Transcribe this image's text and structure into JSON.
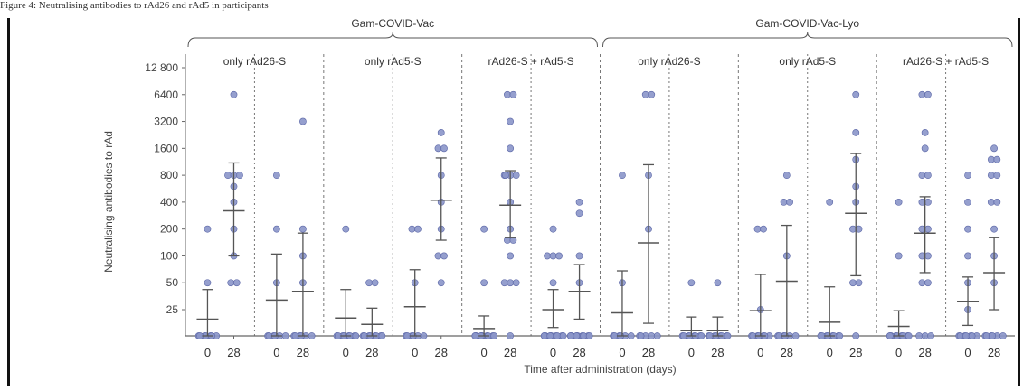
{
  "page": {
    "caption_top": "Figure 4: Neutralising antibodies to rAd26 and rAd5 in participants",
    "caption_bottom": ""
  },
  "colors": {
    "point_fill": "#8a95c9",
    "point_stroke": "#5b66a6",
    "whisker": "#555555",
    "divider": "#777777",
    "axis": "#666666"
  },
  "chart_data": {
    "type": "scatter",
    "ylabel": "Neutralising antibodies to rAd",
    "xlabel": "Time after administration (days)",
    "y_scale": "log2",
    "yticks": [
      25,
      50,
      100,
      200,
      400,
      800,
      1600,
      3200,
      6400,
      12800
    ],
    "ytick_labels": [
      "25",
      "50",
      "100",
      "200",
      "400",
      "800",
      "1600",
      "3200",
      "6400",
      "12 800"
    ],
    "y_floor_label": "",
    "groups": [
      {
        "name": "Gam-COVID-Vac",
        "subgroups": [
          0,
          1,
          2
        ]
      },
      {
        "name": "Gam-COVID-Vac-Lyo",
        "subgroups": [
          3,
          4,
          5
        ]
      }
    ],
    "subgroups": [
      {
        "label": "only rAd26-S",
        "panels": [
          0,
          1
        ]
      },
      {
        "label": "only rAd5-S",
        "panels": [
          2,
          3
        ]
      },
      {
        "label": "rAd26-S + rAd5-S",
        "panels": [
          4,
          5
        ]
      },
      {
        "label": "only rAd26-S",
        "panels": [
          6,
          7
        ]
      },
      {
        "label": "only rAd5-S",
        "panels": [
          8,
          9
        ]
      },
      {
        "label": "rAd26-S + rAd5-S",
        "panels": [
          10,
          11
        ]
      }
    ],
    "x_tick_labels": [
      "0",
      "28"
    ],
    "panels": [
      {
        "d0": {
          "values": [
            0,
            0,
            0,
            0,
            0,
            0,
            0,
            50,
            200
          ],
          "mean": 16,
          "ci": [
            0,
            42
          ]
        },
        "d28": {
          "values": [
            50,
            50,
            100,
            200,
            400,
            600,
            800,
            800,
            800,
            6400
          ],
          "mean": 320,
          "ci": [
            100,
            1100
          ]
        }
      },
      {
        "d0": {
          "values": [
            0,
            0,
            0,
            0,
            0,
            0,
            50,
            200,
            800
          ],
          "mean": 32,
          "ci": [
            0,
            105
          ]
        },
        "d28": {
          "values": [
            0,
            0,
            0,
            0,
            0,
            0,
            50,
            100,
            200,
            3200
          ],
          "mean": 40,
          "ci": [
            0,
            180
          ]
        }
      },
      {
        "d0": {
          "values": [
            0,
            0,
            0,
            0,
            0,
            0,
            0,
            0,
            200
          ],
          "mean": 17,
          "ci": [
            0,
            42
          ]
        },
        "d28": {
          "values": [
            0,
            0,
            0,
            0,
            0,
            0,
            0,
            0,
            50,
            50
          ],
          "mean": 11,
          "ci": [
            0,
            26
          ]
        }
      },
      {
        "d0": {
          "values": [
            0,
            0,
            0,
            0,
            0,
            0,
            50,
            200,
            200
          ],
          "mean": 27,
          "ci": [
            0,
            70
          ]
        },
        "d28": {
          "values": [
            50,
            100,
            100,
            200,
            400,
            800,
            1600,
            1600,
            2400
          ],
          "mean": 420,
          "ci": [
            150,
            1250
          ]
        }
      },
      {
        "d0": {
          "values": [
            0,
            0,
            0,
            0,
            0,
            0,
            0,
            0,
            0,
            0,
            50,
            200
          ],
          "mean": 7,
          "ci": [
            0,
            19
          ]
        },
        "d28": {
          "values": [
            0,
            50,
            50,
            50,
            100,
            150,
            150,
            200,
            400,
            800,
            800,
            800,
            800,
            1600,
            3200,
            6400,
            6400
          ],
          "mean": 370,
          "ci": [
            160,
            900
          ]
        }
      },
      {
        "d0": {
          "values": [
            0,
            0,
            0,
            0,
            0,
            0,
            0,
            0,
            0,
            0,
            50,
            100,
            100,
            100,
            200
          ],
          "mean": 25,
          "ci": [
            8,
            42
          ]
        },
        "d28": {
          "values": [
            0,
            0,
            0,
            0,
            0,
            0,
            0,
            0,
            0,
            0,
            50,
            100,
            300,
            400
          ],
          "mean": 40,
          "ci": [
            16,
            80
          ]
        }
      },
      {
        "d0": {
          "values": [
            0,
            0,
            0,
            0,
            0,
            0,
            50,
            800
          ],
          "mean": 22,
          "ci": [
            0,
            68
          ]
        },
        "d28": {
          "values": [
            0,
            0,
            0,
            0,
            0,
            200,
            800,
            6400,
            6400
          ],
          "mean": 140,
          "ci": [
            12,
            1050
          ]
        }
      },
      {
        "d0": {
          "values": [
            0,
            0,
            0,
            0,
            0,
            0,
            0,
            0,
            50
          ],
          "mean": 5,
          "ci": [
            0,
            18
          ]
        },
        "d28": {
          "values": [
            0,
            0,
            0,
            0,
            0,
            0,
            0,
            0,
            50
          ],
          "mean": 5,
          "ci": [
            0,
            18
          ]
        }
      },
      {
        "d0": {
          "values": [
            0,
            0,
            0,
            0,
            0,
            0,
            0,
            25,
            200,
            200
          ],
          "mean": 24,
          "ci": [
            0,
            62
          ]
        },
        "d28": {
          "values": [
            0,
            0,
            0,
            0,
            0,
            0,
            100,
            400,
            400,
            800
          ],
          "mean": 52,
          "ci": [
            0,
            220
          ]
        }
      },
      {
        "d0": {
          "values": [
            0,
            0,
            0,
            0,
            0,
            0,
            0,
            0,
            400
          ],
          "mean": 13,
          "ci": [
            0,
            45
          ]
        },
        "d28": {
          "values": [
            0,
            50,
            50,
            200,
            200,
            400,
            600,
            1200,
            2400,
            6400
          ],
          "mean": 300,
          "ci": [
            60,
            1400
          ]
        }
      },
      {
        "d0": {
          "values": [
            0,
            0,
            0,
            0,
            0,
            0,
            0,
            0,
            0,
            100,
            400
          ],
          "mean": 9,
          "ci": [
            0,
            24
          ]
        },
        "d28": {
          "values": [
            0,
            0,
            0,
            50,
            50,
            100,
            100,
            200,
            200,
            400,
            400,
            800,
            800,
            1600,
            2400,
            6400,
            6400
          ],
          "mean": 180,
          "ci": [
            65,
            460
          ]
        }
      },
      {
        "d0": {
          "values": [
            0,
            0,
            0,
            0,
            0,
            0,
            0,
            25,
            50,
            100,
            200,
            400,
            800
          ],
          "mean": 31,
          "ci": [
            10,
            58
          ]
        },
        "d28": {
          "values": [
            0,
            0,
            0,
            0,
            0,
            0,
            50,
            100,
            200,
            400,
            400,
            800,
            800,
            1200,
            1200,
            1600
          ],
          "mean": 65,
          "ci": [
            25,
            160
          ]
        }
      }
    ]
  }
}
